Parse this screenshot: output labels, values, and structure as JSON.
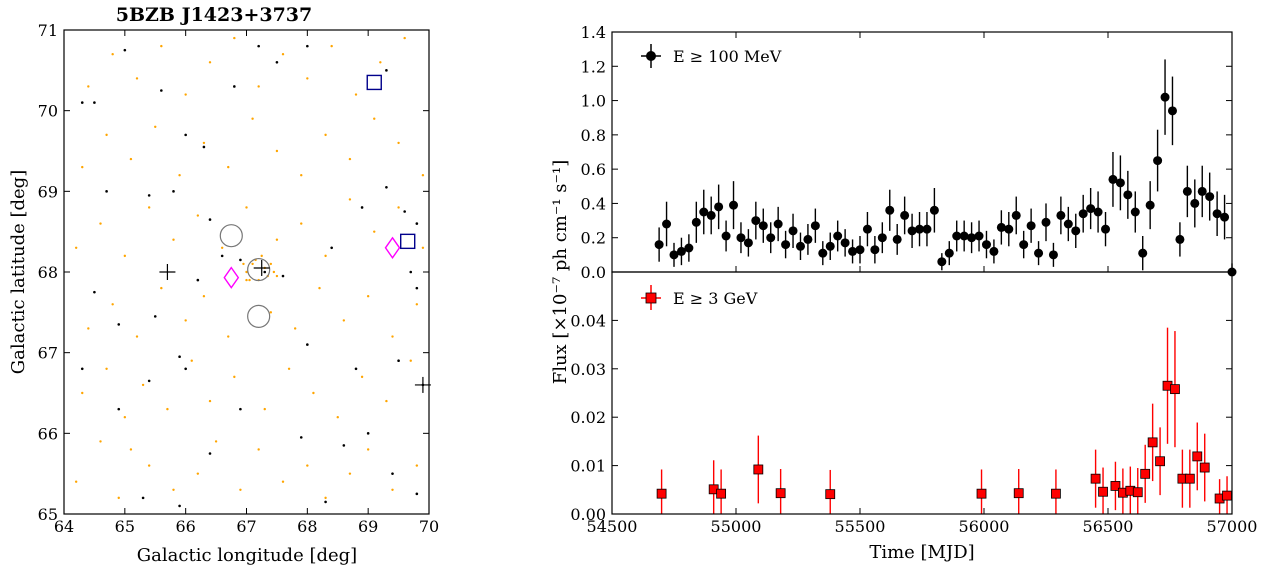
{
  "chart_data": [
    {
      "type": "scatter",
      "title": "5BZB J1423+3737",
      "xlabel": "Galactic longitude [deg]",
      "ylabel": "Galactic latitude [deg]",
      "xlim": [
        64,
        70
      ],
      "ylim": [
        65,
        71
      ],
      "xticks": [
        "64",
        "65",
        "66",
        "67",
        "68",
        "69",
        "70"
      ],
      "yticks": [
        "65",
        "66",
        "67",
        "68",
        "69",
        "70",
        "71"
      ],
      "grid": false,
      "colors": {
        "orange": "#ffa500",
        "black": "#000000",
        "blue": "#00008b",
        "magenta": "#ff00ff",
        "gray": "#777777"
      },
      "orange_points": [
        [
          64.2,
          65.4
        ],
        [
          64.6,
          65.9
        ],
        [
          64.9,
          65.2
        ],
        [
          65.1,
          65.8
        ],
        [
          65.4,
          65.6
        ],
        [
          65.8,
          65.3
        ],
        [
          66.2,
          65.5
        ],
        [
          66.5,
          65.9
        ],
        [
          66.9,
          65.3
        ],
        [
          67.2,
          65.8
        ],
        [
          67.6,
          65.4
        ],
        [
          68.0,
          65.6
        ],
        [
          68.3,
          65.2
        ],
        [
          68.7,
          65.5
        ],
        [
          69.0,
          65.8
        ],
        [
          69.4,
          65.3
        ],
        [
          69.8,
          65.6
        ],
        [
          64.3,
          66.5
        ],
        [
          64.7,
          66.8
        ],
        [
          65.0,
          66.2
        ],
        [
          65.3,
          66.6
        ],
        [
          65.7,
          66.3
        ],
        [
          66.1,
          66.9
        ],
        [
          66.4,
          66.4
        ],
        [
          66.8,
          66.7
        ],
        [
          67.3,
          66.3
        ],
        [
          67.7,
          66.8
        ],
        [
          68.1,
          66.5
        ],
        [
          68.5,
          66.2
        ],
        [
          68.9,
          66.7
        ],
        [
          69.3,
          66.4
        ],
        [
          69.7,
          66.9
        ],
        [
          64.4,
          67.3
        ],
        [
          64.8,
          67.6
        ],
        [
          65.2,
          67.2
        ],
        [
          65.6,
          67.8
        ],
        [
          66.0,
          67.4
        ],
        [
          66.3,
          67.7
        ],
        [
          66.7,
          67.2
        ],
        [
          67.0,
          67.9
        ],
        [
          67.4,
          67.5
        ],
        [
          67.8,
          67.3
        ],
        [
          68.2,
          67.8
        ],
        [
          68.6,
          67.4
        ],
        [
          69.0,
          67.7
        ],
        [
          69.4,
          67.2
        ],
        [
          69.8,
          67.6
        ],
        [
          64.2,
          68.3
        ],
        [
          64.6,
          68.6
        ],
        [
          65.0,
          68.2
        ],
        [
          65.4,
          68.8
        ],
        [
          65.8,
          68.4
        ],
        [
          66.2,
          68.7
        ],
        [
          66.6,
          68.3
        ],
        [
          67.0,
          68.8
        ],
        [
          67.5,
          68.4
        ],
        [
          67.9,
          68.6
        ],
        [
          68.3,
          68.2
        ],
        [
          68.7,
          68.9
        ],
        [
          69.1,
          68.5
        ],
        [
          69.5,
          68.8
        ],
        [
          69.9,
          68.3
        ],
        [
          64.3,
          69.3
        ],
        [
          64.7,
          69.7
        ],
        [
          65.1,
          69.4
        ],
        [
          65.5,
          69.8
        ],
        [
          65.9,
          69.2
        ],
        [
          66.3,
          69.6
        ],
        [
          66.7,
          69.3
        ],
        [
          67.1,
          69.9
        ],
        [
          67.5,
          69.5
        ],
        [
          67.9,
          69.2
        ],
        [
          68.3,
          69.7
        ],
        [
          68.7,
          69.4
        ],
        [
          69.1,
          69.9
        ],
        [
          69.5,
          69.6
        ],
        [
          69.9,
          69.2
        ],
        [
          64.4,
          70.3
        ],
        [
          64.8,
          70.7
        ],
        [
          65.2,
          70.4
        ],
        [
          65.6,
          70.8
        ],
        [
          66.0,
          70.2
        ],
        [
          66.4,
          70.6
        ],
        [
          66.8,
          70.9
        ],
        [
          67.2,
          70.3
        ],
        [
          67.6,
          70.7
        ],
        [
          68.0,
          70.4
        ],
        [
          68.4,
          70.8
        ],
        [
          68.8,
          70.2
        ],
        [
          69.2,
          70.6
        ],
        [
          69.6,
          70.9
        ],
        [
          67.0,
          68.0
        ],
        [
          67.1,
          68.1
        ],
        [
          67.2,
          67.9
        ],
        [
          67.3,
          68.05
        ],
        [
          67.35,
          67.95
        ],
        [
          67.05,
          67.9
        ],
        [
          67.15,
          68.15
        ],
        [
          67.25,
          68.2
        ],
        [
          67.4,
          68.1
        ],
        [
          67.5,
          67.95
        ],
        [
          67.45,
          68.0
        ],
        [
          66.95,
          68.1
        ]
      ],
      "black_points": [
        [
          64.3,
          70.1
        ],
        [
          64.5,
          70.1
        ],
        [
          65.0,
          70.75
        ],
        [
          65.6,
          70.25
        ],
        [
          66.0,
          69.7
        ],
        [
          66.3,
          69.55
        ],
        [
          66.8,
          70.3
        ],
        [
          67.2,
          70.8
        ],
        [
          67.5,
          70.6
        ],
        [
          68.0,
          70.8
        ],
        [
          69.3,
          70.5
        ],
        [
          69.3,
          69.05
        ],
        [
          69.6,
          68.75
        ],
        [
          69.8,
          68.6
        ],
        [
          64.7,
          69.0
        ],
        [
          65.4,
          68.95
        ],
        [
          65.8,
          69.0
        ],
        [
          66.4,
          68.65
        ],
        [
          66.6,
          68.2
        ],
        [
          66.9,
          68.15
        ],
        [
          67.3,
          68.0
        ],
        [
          67.6,
          67.95
        ],
        [
          68.4,
          68.3
        ],
        [
          68.9,
          68.8
        ],
        [
          69.7,
          68.0
        ],
        [
          69.8,
          67.8
        ],
        [
          64.5,
          67.75
        ],
        [
          64.9,
          67.35
        ],
        [
          65.5,
          67.45
        ],
        [
          66.2,
          67.9
        ],
        [
          66.0,
          66.8
        ],
        [
          65.4,
          66.65
        ],
        [
          65.9,
          66.95
        ],
        [
          68.0,
          67.1
        ],
        [
          68.8,
          66.8
        ],
        [
          69.5,
          66.9
        ],
        [
          69.9,
          66.6
        ],
        [
          64.3,
          66.8
        ],
        [
          64.9,
          66.3
        ],
        [
          66.4,
          65.75
        ],
        [
          66.9,
          66.3
        ],
        [
          67.9,
          65.95
        ],
        [
          68.6,
          65.85
        ],
        [
          69.0,
          66.0
        ],
        [
          69.4,
          65.5
        ],
        [
          69.8,
          65.25
        ],
        [
          65.3,
          65.2
        ],
        [
          65.9,
          65.1
        ],
        [
          68.3,
          65.15
        ]
      ],
      "crosses": [
        [
          65.7,
          68.0
        ],
        [
          67.25,
          68.05
        ],
        [
          69.9,
          66.6
        ]
      ],
      "circles": [
        [
          66.75,
          68.45
        ],
        [
          67.2,
          67.45
        ],
        [
          67.2,
          68.03
        ]
      ],
      "diamonds": [
        [
          66.75,
          67.93
        ],
        [
          69.4,
          68.3
        ]
      ],
      "squares": [
        [
          69.1,
          70.35
        ],
        [
          69.65,
          68.38
        ]
      ]
    },
    {
      "type": "scatter",
      "panel": "upper",
      "legend": "E ≥ 100 MeV",
      "legend_position": "top-left",
      "ylim": [
        0,
        1.4
      ],
      "yticks": [
        "0.0",
        "0.2",
        "0.4",
        "0.6",
        "0.8",
        "1.0",
        "1.2",
        "1.4"
      ],
      "xlim": [
        54500,
        57000
      ],
      "color": "#000000",
      "points": [
        [
          54690,
          0.16,
          0.1
        ],
        [
          54720,
          0.28,
          0.13
        ],
        [
          54750,
          0.1,
          0.07
        ],
        [
          54780,
          0.12,
          0.08
        ],
        [
          54810,
          0.14,
          0.08
        ],
        [
          54840,
          0.29,
          0.12
        ],
        [
          54870,
          0.35,
          0.13
        ],
        [
          54900,
          0.33,
          0.11
        ],
        [
          54930,
          0.38,
          0.13
        ],
        [
          54960,
          0.21,
          0.09
        ],
        [
          54990,
          0.39,
          0.14
        ],
        [
          55020,
          0.2,
          0.09
        ],
        [
          55050,
          0.17,
          0.08
        ],
        [
          55080,
          0.3,
          0.11
        ],
        [
          55110,
          0.27,
          0.1
        ],
        [
          55140,
          0.2,
          0.09
        ],
        [
          55170,
          0.28,
          0.1
        ],
        [
          55200,
          0.16,
          0.08
        ],
        [
          55230,
          0.24,
          0.1
        ],
        [
          55260,
          0.15,
          0.08
        ],
        [
          55290,
          0.19,
          0.09
        ],
        [
          55320,
          0.27,
          0.1
        ],
        [
          55350,
          0.11,
          0.07
        ],
        [
          55380,
          0.15,
          0.08
        ],
        [
          55410,
          0.21,
          0.09
        ],
        [
          55440,
          0.17,
          0.08
        ],
        [
          55470,
          0.12,
          0.07
        ],
        [
          55500,
          0.13,
          0.08
        ],
        [
          55530,
          0.25,
          0.1
        ],
        [
          55560,
          0.13,
          0.08
        ],
        [
          55590,
          0.2,
          0.09
        ],
        [
          55620,
          0.36,
          0.12
        ],
        [
          55650,
          0.19,
          0.09
        ],
        [
          55680,
          0.33,
          0.11
        ],
        [
          55710,
          0.24,
          0.1
        ],
        [
          55740,
          0.25,
          0.1
        ],
        [
          55770,
          0.25,
          0.1
        ],
        [
          55800,
          0.36,
          0.13
        ],
        [
          55830,
          0.06,
          0.05
        ],
        [
          55860,
          0.11,
          0.07
        ],
        [
          55890,
          0.21,
          0.09
        ],
        [
          55920,
          0.21,
          0.09
        ],
        [
          55950,
          0.2,
          0.09
        ],
        [
          55980,
          0.21,
          0.09
        ],
        [
          56010,
          0.16,
          0.08
        ],
        [
          56040,
          0.12,
          0.07
        ],
        [
          56070,
          0.26,
          0.1
        ],
        [
          56100,
          0.25,
          0.1
        ],
        [
          56130,
          0.33,
          0.11
        ],
        [
          56160,
          0.16,
          0.08
        ],
        [
          56190,
          0.27,
          0.1
        ],
        [
          56220,
          0.11,
          0.07
        ],
        [
          56250,
          0.29,
          0.11
        ],
        [
          56280,
          0.1,
          0.07
        ],
        [
          56310,
          0.33,
          0.11
        ],
        [
          56340,
          0.28,
          0.1
        ],
        [
          56370,
          0.24,
          0.1
        ],
        [
          56400,
          0.34,
          0.11
        ],
        [
          56430,
          0.37,
          0.12
        ],
        [
          56460,
          0.35,
          0.12
        ],
        [
          56490,
          0.25,
          0.1
        ],
        [
          56520,
          0.54,
          0.16
        ],
        [
          56550,
          0.52,
          0.16
        ],
        [
          56580,
          0.45,
          0.14
        ],
        [
          56610,
          0.35,
          0.12
        ],
        [
          56640,
          0.11,
          0.1
        ],
        [
          56670,
          0.39,
          0.14
        ],
        [
          56700,
          0.65,
          0.18
        ],
        [
          56730,
          1.02,
          0.22
        ],
        [
          56760,
          0.94,
          0.2
        ],
        [
          56790,
          0.19,
          0.1
        ],
        [
          56820,
          0.47,
          0.15
        ],
        [
          56850,
          0.4,
          0.14
        ],
        [
          56880,
          0.47,
          0.15
        ],
        [
          56910,
          0.44,
          0.14
        ],
        [
          56940,
          0.34,
          0.13
        ],
        [
          56970,
          0.32,
          0.13
        ],
        [
          57000,
          0.0,
          0.05
        ]
      ]
    },
    {
      "type": "scatter",
      "panel": "lower",
      "legend": "E ≥ 3 GeV",
      "legend_position": "top-left",
      "xlabel": "Time [MJD]",
      "ylabel": "Flux [×10⁻⁷ ph cm⁻¹ s⁻¹]",
      "ylim": [
        0,
        0.05
      ],
      "yticks": [
        "0.00",
        "0.01",
        "0.02",
        "0.03",
        "0.04"
      ],
      "xlim": [
        54500,
        57000
      ],
      "xticks": [
        "54500",
        "55000",
        "55500",
        "56000",
        "56500",
        "57000"
      ],
      "color": "#ff0000",
      "points": [
        [
          54700,
          0.0042,
          0.005
        ],
        [
          54910,
          0.0051,
          0.006
        ],
        [
          54940,
          0.0042,
          0.005
        ],
        [
          55090,
          0.0092,
          0.007
        ],
        [
          55180,
          0.0043,
          0.005
        ],
        [
          55380,
          0.0041,
          0.005
        ],
        [
          55990,
          0.0042,
          0.005
        ],
        [
          56140,
          0.0043,
          0.005
        ],
        [
          56290,
          0.0042,
          0.005
        ],
        [
          56450,
          0.0073,
          0.006
        ],
        [
          56480,
          0.0046,
          0.005
        ],
        [
          56530,
          0.0058,
          0.005
        ],
        [
          56560,
          0.0044,
          0.005
        ],
        [
          56590,
          0.0048,
          0.005
        ],
        [
          56620,
          0.0045,
          0.005
        ],
        [
          56650,
          0.0083,
          0.006
        ],
        [
          56680,
          0.0148,
          0.008
        ],
        [
          56710,
          0.0109,
          0.007
        ],
        [
          56740,
          0.0265,
          0.012
        ],
        [
          56770,
          0.0258,
          0.012
        ],
        [
          56800,
          0.0073,
          0.006
        ],
        [
          56830,
          0.0073,
          0.006
        ],
        [
          56860,
          0.0119,
          0.007
        ],
        [
          56890,
          0.0096,
          0.007
        ],
        [
          56950,
          0.0032,
          0.004
        ],
        [
          56980,
          0.0038,
          0.004
        ]
      ]
    }
  ]
}
